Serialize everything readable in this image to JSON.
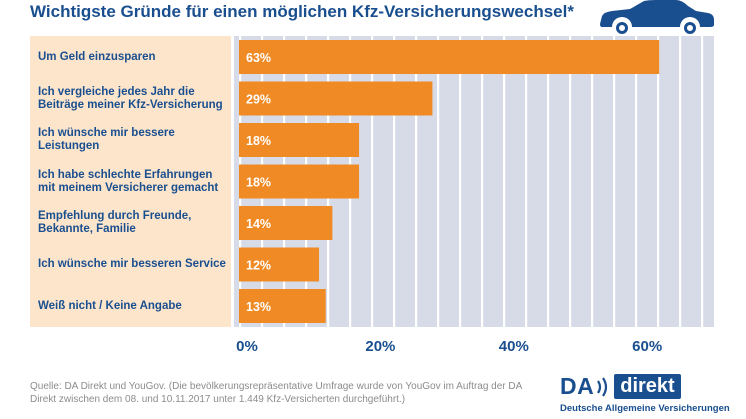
{
  "header": {
    "title": "Wichtigste Gründe für einen möglichen Kfz-Versicherungswechsel*"
  },
  "chart_data": {
    "type": "bar",
    "orientation": "horizontal",
    "title": "Wichtigste Gründe für einen möglichen Kfz-Versicherungswechsel*",
    "categories": [
      "Um Geld einzusparen",
      "Ich vergleiche jedes Jahr die Beiträge meiner Kfz-Versicherung",
      "Ich wünsche mir bessere Leistungen",
      "Ich habe schlechte Erfahrungen mit meinem Versicherer gemacht",
      "Empfehlung durch Freunde, Bekannte, Familie",
      "Ich wünsche mir besseren Service",
      "Weiß nicht / Keine Angabe"
    ],
    "category_lines": [
      [
        "Um Geld einzusparen"
      ],
      [
        "Ich vergleiche jedes Jahr die",
        "Beiträge meiner Kfz-Versicherung"
      ],
      [
        "Ich wünsche mir bessere",
        "Leistungen"
      ],
      [
        "Ich habe schlechte Erfahrungen",
        "mit meinem Versicherer gemacht"
      ],
      [
        "Empfehlung durch Freunde,",
        "Bekannte, Familie"
      ],
      [
        "Ich wünsche mir besseren Service"
      ],
      [
        "Weiß nicht / Keine Angabe"
      ]
    ],
    "values": [
      63,
      29,
      18,
      18,
      14,
      12,
      13
    ],
    "value_labels": [
      "63%",
      "29%",
      "18%",
      "18%",
      "14%",
      "12%",
      "13%"
    ],
    "xlim": [
      0,
      75
    ],
    "x_ticks": [
      0,
      20,
      40,
      60
    ],
    "x_tick_labels": [
      "0%",
      "20%",
      "40%",
      "60%"
    ],
    "grid": true,
    "colors": {
      "bar": "#f08a24",
      "grid_background": "#d6dbe7",
      "gridline": "#ffffff",
      "label_panel": "#fde5cc",
      "text": "#1a4f8f"
    }
  },
  "footer": {
    "source": "Quelle: DA Direkt und YouGov. (Die bevölkerungsrepräsentative Umfrage wurde von YouGov im Auftrag der DA Direkt zwischen dem 08. und 10.11.2017 unter 1.449 Kfz-Versicherten durchgeführt.)"
  },
  "logo": {
    "brand_left": "DA",
    "brand_right": "direkt",
    "tagline": "Deutsche Allgemeine Versicherungen"
  },
  "icons": {
    "car": "car-icon"
  }
}
